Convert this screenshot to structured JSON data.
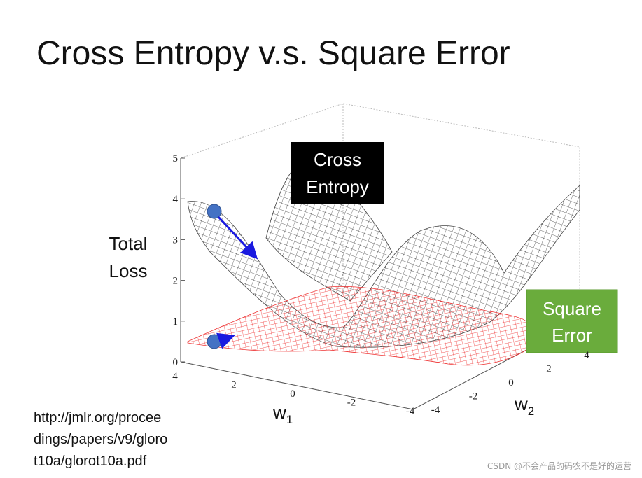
{
  "title": "Cross Entropy v.s. Square Error",
  "plot": {
    "z_label": [
      "Total",
      "Loss"
    ],
    "z_ticks": [
      0,
      1,
      2,
      3,
      4,
      5
    ],
    "w1_ticks": [
      4,
      2,
      0,
      -2,
      -4
    ],
    "w2_ticks": [
      -4,
      -2,
      0,
      2,
      4
    ],
    "w1_label": {
      "letter": "w",
      "sub": "1"
    },
    "w2_label": {
      "letter": "w",
      "sub": "2"
    },
    "cross_entropy_box": [
      "Cross",
      "Entropy"
    ],
    "square_error_box": [
      "Square",
      "Error"
    ]
  },
  "reference": [
    "http://jmlr.org/procee",
    "dings/papers/v9/gloro",
    "t10a/glorot10a.pdf"
  ],
  "watermark": "CSDN @不会产品的码农不是好的运营"
}
